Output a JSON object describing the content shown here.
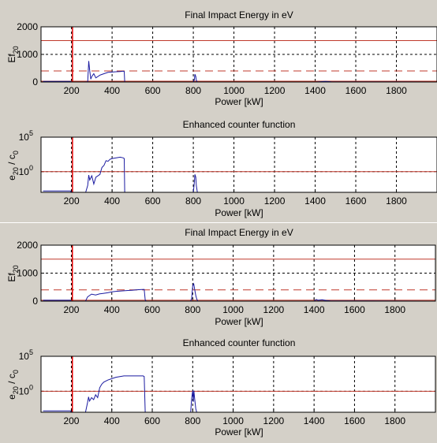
{
  "colors": {
    "figure_bg": "#d4d0c8",
    "plot_bg": "#ffffff",
    "signal": "#1a1aa0",
    "threshold": "#c0392b",
    "marker": "#e00000"
  },
  "chart_data": [
    {
      "type": "line",
      "title": "Final Impact Energy in eV",
      "xlabel": "Power [kW]",
      "ylabel_main": "Ef",
      "ylabel_sub": "20",
      "x_ticks": [
        "200",
        "400",
        "600",
        "800",
        "1000",
        "1200",
        "1400",
        "1600",
        "1800"
      ],
      "y_ticks": [
        "0",
        "1000",
        "2000"
      ],
      "xlim": [
        50,
        2000
      ],
      "ylim": [
        0,
        2000
      ],
      "grid": true,
      "vertical_marker_x": 205,
      "hlines": [
        {
          "y": 1500,
          "style": "solid"
        },
        {
          "y": 400,
          "style": "dashed"
        },
        {
          "y": 30,
          "style": "solid"
        }
      ],
      "series": [
        {
          "x": [
            60,
            100,
            150,
            195,
            200,
            205,
            260,
            280,
            285,
            290,
            295,
            300,
            310,
            320,
            340,
            360,
            380,
            400,
            420,
            440,
            455,
            460,
            462,
            470,
            800,
            805,
            808,
            812,
            815,
            820,
            830,
            900,
            1400,
            1420,
            1450,
            1480,
            1990
          ],
          "y": [
            20,
            20,
            20,
            20,
            0,
            0,
            0,
            10,
            760,
            400,
            100,
            200,
            300,
            150,
            250,
            300,
            350,
            360,
            370,
            380,
            390,
            380,
            0,
            0,
            0,
            80,
            280,
            200,
            60,
            0,
            0,
            0,
            0,
            10,
            20,
            10,
            0
          ]
        }
      ]
    },
    {
      "type": "line",
      "title": "Enhanced counter function",
      "xlabel": "Power  [kW]",
      "ylabel_main": "e",
      "ylabel_sub1": "20",
      "ylabel_mid": " / c",
      "ylabel_sub2": "0",
      "x_ticks": [
        "200",
        "400",
        "600",
        "800",
        "1000",
        "1200",
        "1400",
        "1600",
        "1800"
      ],
      "y_ticks": [
        {
          "base": "10",
          "exp": "0",
          "value": 0
        },
        {
          "base": "10",
          "exp": "5",
          "value": 5
        }
      ],
      "yscale": "log",
      "xlim": [
        50,
        2000
      ],
      "ylim": [
        -3,
        5
      ],
      "grid": true,
      "vertical_marker_x": 205,
      "hlines": [
        {
          "y": 0,
          "style": "solid"
        }
      ],
      "series": [
        {
          "x": [
            60,
            100,
            150,
            195,
            200,
            270,
            280,
            285,
            290,
            300,
            310,
            320,
            340,
            350,
            360,
            370,
            380,
            390,
            400,
            420,
            440,
            455,
            460,
            462,
            800,
            805,
            808,
            812,
            815,
            820
          ],
          "y": [
            -2.8,
            -2.8,
            -2.8,
            -2.8,
            -3,
            -3,
            -2,
            -0.5,
            -1.2,
            -0.6,
            -1.8,
            -0.8,
            -0.4,
            0.6,
            0.9,
            1.6,
            1.5,
            1.8,
            1.9,
            2.0,
            2.1,
            2.0,
            1.9,
            -3,
            -3,
            -1.5,
            -0.4,
            -0.8,
            -2,
            -3
          ]
        }
      ]
    },
    {
      "type": "line",
      "title": "Final Impact Energy in eV",
      "xlabel": "Power [kW]",
      "ylabel_main": "Ef",
      "ylabel_sub": "20",
      "x_ticks": [
        "200",
        "400",
        "600",
        "800",
        "1000",
        "1200",
        "1400",
        "1600",
        "1800"
      ],
      "y_ticks": [
        "0",
        "1000",
        "2000"
      ],
      "xlim": [
        50,
        2000
      ],
      "ylim": [
        0,
        2000
      ],
      "grid": true,
      "vertical_marker_x": 205,
      "hlines": [
        {
          "y": 1500,
          "style": "solid"
        },
        {
          "y": 400,
          "style": "dashed"
        },
        {
          "y": 30,
          "style": "solid"
        }
      ],
      "series": [
        {
          "x": [
            60,
            150,
            195,
            200,
            205,
            270,
            280,
            290,
            300,
            320,
            340,
            360,
            380,
            400,
            420,
            440,
            460,
            480,
            500,
            520,
            540,
            560,
            565,
            570,
            790,
            795,
            800,
            805,
            810,
            815,
            820,
            825,
            1400,
            1410,
            1420,
            1440,
            1460,
            1480,
            1990
          ],
          "y": [
            30,
            30,
            30,
            0,
            0,
            0,
            150,
            200,
            250,
            220,
            260,
            280,
            300,
            330,
            350,
            360,
            370,
            380,
            390,
            400,
            410,
            420,
            40,
            0,
            0,
            100,
            550,
            620,
            400,
            200,
            80,
            0,
            0,
            60,
            30,
            50,
            20,
            10,
            0
          ]
        }
      ]
    },
    {
      "type": "line",
      "title": "Enhanced counter function",
      "xlabel": "Power  [kW]",
      "ylabel_main": "e",
      "ylabel_sub1": "20",
      "ylabel_mid": " / c",
      "ylabel_sub2": "0",
      "x_ticks": [
        "200",
        "400",
        "600",
        "800",
        "1000",
        "1200",
        "1400",
        "1600",
        "1800"
      ],
      "y_ticks": [
        {
          "base": "10",
          "exp": "0",
          "value": 0
        },
        {
          "base": "10",
          "exp": "5",
          "value": 5
        }
      ],
      "yscale": "log",
      "xlim": [
        50,
        2000
      ],
      "ylim": [
        -3,
        5
      ],
      "grid": true,
      "vertical_marker_x": 205,
      "hlines": [
        {
          "y": 0,
          "style": "solid"
        }
      ],
      "series": [
        {
          "x": [
            60,
            150,
            195,
            200,
            270,
            280,
            285,
            290,
            300,
            310,
            320,
            330,
            340,
            350,
            360,
            380,
            400,
            420,
            440,
            460,
            480,
            500,
            520,
            540,
            555,
            560,
            565,
            570,
            790,
            795,
            800,
            803,
            806,
            810,
            815,
            820
          ],
          "y": [
            -2.8,
            -2.8,
            -2.8,
            -3,
            -3,
            -1.6,
            -0.8,
            -1.4,
            -0.9,
            -1.2,
            -0.5,
            -0.9,
            0.5,
            1.0,
            1.3,
            1.6,
            1.8,
            2.0,
            2.1,
            2.2,
            2.2,
            2.2,
            2.2,
            2.2,
            2.2,
            2.1,
            -3,
            -3,
            -3,
            -1,
            0.1,
            -1.5,
            0.1,
            -1.2,
            -2.5,
            -3
          ]
        }
      ]
    }
  ]
}
